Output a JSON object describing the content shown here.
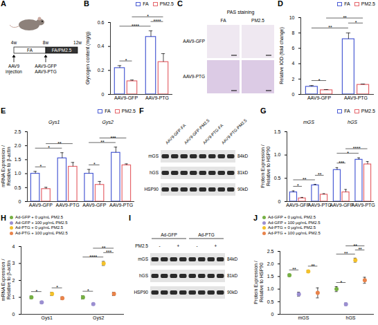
{
  "chart_data": [
    {
      "panel": "B",
      "type": "bar",
      "y_label": "Glycogen content (mg/g)",
      "categories": [
        "AAV9-GFP",
        "AAV9-PTG"
      ],
      "series": [
        {
          "name": "FA",
          "color": "#4a5bd4",
          "values": [
            0.22,
            0.48
          ],
          "errors": [
            0.02,
            0.05
          ]
        },
        {
          "name": "PM2.5",
          "color": "#e5646a",
          "values": [
            0.11,
            0.27
          ],
          "errors": [
            0.01,
            0.07
          ]
        }
      ],
      "ylim": [
        0,
        0.6
      ],
      "yticks": [
        0,
        0.2,
        0.4,
        0.6
      ],
      "legend": "top-right",
      "annotations": [
        {
          "text": "*",
          "from": [
            0,
            0
          ],
          "to": [
            0,
            1
          ]
        },
        {
          "text": "****",
          "from": [
            0,
            0
          ],
          "to": [
            1,
            0
          ]
        },
        {
          "text": "****",
          "from": [
            1,
            0
          ],
          "to": [
            1,
            1
          ]
        },
        {
          "text": "*",
          "from": [
            0,
            1
          ],
          "to": [
            1,
            1
          ]
        }
      ]
    },
    {
      "panel": "D",
      "type": "bar",
      "y_label": "Relative IOD (fold change)",
      "categories": [
        "AAV9-GFP",
        "AAV9-PTG"
      ],
      "series": [
        {
          "name": "FA",
          "color": "#4a5bd4",
          "values": [
            1.0,
            7.2
          ],
          "errors": [
            0.15,
            0.8
          ]
        },
        {
          "name": "PM2.5",
          "color": "#e5646a",
          "values": [
            0.55,
            1.25
          ],
          "errors": [
            0.08,
            0.1
          ]
        }
      ],
      "ylim": [
        0,
        10
      ],
      "yticks": [
        0,
        2,
        4,
        6,
        8,
        10
      ],
      "legend": "top-right",
      "annotations": [
        {
          "text": "*",
          "from": [
            0,
            0
          ],
          "to": [
            0,
            1
          ]
        },
        {
          "text": "**",
          "from": [
            0,
            0
          ],
          "to": [
            1,
            0
          ]
        },
        {
          "text": "*",
          "from": [
            1,
            0
          ],
          "to": [
            1,
            1
          ]
        },
        {
          "text": "**",
          "from": [
            0,
            1
          ],
          "to": [
            1,
            1
          ]
        }
      ]
    },
    {
      "panel": "E",
      "type": "bar",
      "y_label": "mRNA Expression / Relative to β-actin",
      "categories": [
        "AAV9-GFP",
        "AAV9-PTG",
        "AAV9-GFP",
        "AAV9-PTG"
      ],
      "groups": [
        "Gys1",
        "Gys2"
      ],
      "series": [
        {
          "name": "FA",
          "color": "#4a5bd4",
          "values": [
            1.0,
            1.55,
            1.0,
            1.75
          ],
          "errors": [
            0.08,
            0.2,
            0.15,
            0.2
          ]
        },
        {
          "name": "PM2.5",
          "color": "#e5646a",
          "values": [
            0.45,
            1.25,
            0.6,
            1.3
          ],
          "errors": [
            0.06,
            0.15,
            0.12,
            0.05
          ]
        }
      ],
      "ylim": [
        0,
        2.5
      ],
      "yticks": [
        0,
        0.5,
        {
          "value": 1,
          "label": "1.0"
        },
        1.5,
        {
          "value": 2,
          "label": "2.0"
        },
        2.5
      ],
      "legend": "top-right",
      "annotations": [
        {
          "text": "*",
          "from": [
            0,
            0
          ],
          "to": [
            0,
            1
          ]
        },
        {
          "text": "*",
          "from": [
            0,
            0
          ],
          "to": [
            1,
            0
          ]
        },
        {
          "text": "**",
          "from": [
            0,
            1
          ],
          "to": [
            1,
            1
          ]
        },
        {
          "text": "*",
          "from": [
            2,
            0
          ],
          "to": [
            2,
            1
          ]
        },
        {
          "text": "**",
          "from": [
            2,
            0
          ],
          "to": [
            3,
            0
          ]
        },
        {
          "text": "***",
          "from": [
            2,
            1
          ],
          "to": [
            3,
            1
          ]
        }
      ]
    },
    {
      "panel": "G",
      "type": "bar",
      "y_label": "Protein Expression / Relative to HSP90",
      "categories": [
        "AAV9-GFP",
        "AAV9-PTG",
        "AAV9-GFP",
        "AAV9-PTG"
      ],
      "groups": [
        "mGS",
        "hGS"
      ],
      "series": [
        {
          "name": "FA",
          "color": "#4a5bd4",
          "values": [
            0.2,
            0.35,
            0.68,
            0.9
          ],
          "errors": [
            0.03,
            0.02,
            0.05,
            0.04
          ]
        },
        {
          "name": "PM2.5",
          "color": "#e5646a",
          "values": [
            0.07,
            0.15,
            0.2,
            0.8
          ],
          "errors": [
            0.02,
            0.02,
            0.06,
            0.06
          ]
        }
      ],
      "ylim": [
        0,
        1.5
      ],
      "yticks": [
        0,
        0.5,
        {
          "value": 1,
          "label": "1.0"
        },
        1.5
      ],
      "legend": "top-right",
      "annotations": [
        {
          "text": "*",
          "from": [
            0,
            0
          ],
          "to": [
            0,
            1
          ]
        },
        {
          "text": "**",
          "from": [
            0,
            0
          ],
          "to": [
            1,
            0
          ]
        },
        {
          "text": "**",
          "from": [
            1,
            0
          ],
          "to": [
            1,
            1
          ]
        },
        {
          "text": "***",
          "from": [
            2,
            0
          ],
          "to": [
            2,
            1
          ]
        },
        {
          "text": "*",
          "from": [
            2,
            0
          ],
          "to": [
            3,
            0
          ]
        },
        {
          "text": "****",
          "from": [
            2,
            1
          ],
          "to": [
            3,
            1
          ]
        }
      ]
    },
    {
      "panel": "H",
      "type": "scatter",
      "y_label": "mRNA Expression / Relative to β-actin",
      "categories": [
        "Gys1",
        "Gys2"
      ],
      "series": [
        {
          "name": "Ad-GFP + 0 μg/mL PM2.5",
          "color": "#76b043",
          "values": [
            1.0,
            1.0
          ],
          "errors": [
            0.08,
            0.1
          ]
        },
        {
          "name": "Ad-GFP + 100 μg/mL PM2.5",
          "color": "#9b8fd1",
          "values": [
            0.7,
            0.6
          ],
          "errors": [
            0.06,
            0.05
          ]
        },
        {
          "name": "Ad-PTG + 0 μg/mL PM2.5",
          "color": "#f3c12b",
          "values": [
            1.2,
            3.0
          ],
          "errors": [
            0.1,
            0.12
          ]
        },
        {
          "name": "Ad-PTG + 100 μg/mL PM2.5",
          "color": "#e9834a",
          "values": [
            0.95,
            1.2
          ],
          "errors": [
            0.08,
            0.1
          ]
        }
      ],
      "ylim": [
        0,
        4
      ],
      "yticks": [
        0,
        1,
        2,
        3,
        4
      ],
      "legend": "top-left",
      "annotations": [
        {
          "text": "*",
          "from": [
            0,
            0
          ],
          "to": [
            0,
            1
          ]
        },
        {
          "text": "*",
          "from": [
            0,
            2
          ],
          "to": [
            0,
            3
          ]
        },
        {
          "text": "*",
          "from": [
            1,
            0
          ],
          "to": [
            1,
            1
          ]
        },
        {
          "text": "****",
          "from": [
            1,
            0
          ],
          "to": [
            1,
            2
          ]
        },
        {
          "text": "***",
          "from": [
            1,
            2
          ],
          "to": [
            1,
            3
          ]
        },
        {
          "text": "**",
          "from": [
            1,
            1
          ],
          "to": [
            1,
            3
          ]
        }
      ]
    },
    {
      "panel": "J",
      "type": "scatter",
      "y_label": "Protein Expression / Relative to HSP90",
      "categories": [
        "mGS",
        "hGS"
      ],
      "series": [
        {
          "name": "Ad-GFP + 0 μg/mL PM2.5",
          "color": "#76b043",
          "values": [
            1.55,
            1.0
          ],
          "errors": [
            0.05,
            0.1
          ]
        },
        {
          "name": "Ad-GFP + 100 μg/mL PM2.5",
          "color": "#9b8fd1",
          "values": [
            0.8,
            0.4
          ],
          "errors": [
            0.08,
            0.05
          ]
        },
        {
          "name": "Ad-PTG + 0 μg/mL PM2.5",
          "color": "#f3c12b",
          "values": [
            1.7,
            2.15
          ],
          "errors": [
            0.05,
            0.08
          ]
        },
        {
          "name": "Ad-PTG + 100 μg/mL PM2.5",
          "color": "#e9834a",
          "values": [
            0.85,
            1.35
          ],
          "errors": [
            0.2,
            0.12
          ]
        }
      ],
      "ylim": [
        0,
        2.5
      ],
      "yticks": [
        0,
        0.5,
        {
          "value": 1,
          "label": "1.0"
        },
        1.5,
        {
          "value": 2,
          "label": "2.0"
        },
        2.5
      ],
      "legend": "top-left",
      "annotations": [
        {
          "text": "**",
          "from": [
            0,
            0
          ],
          "to": [
            0,
            1
          ]
        },
        {
          "text": "**",
          "from": [
            0,
            2
          ],
          "to": [
            0,
            3
          ]
        },
        {
          "text": "*",
          "from": [
            1,
            0
          ],
          "to": [
            1,
            1
          ]
        },
        {
          "text": "**",
          "from": [
            1,
            0
          ],
          "to": [
            1,
            2
          ]
        },
        {
          "text": "**",
          "from": [
            1,
            2
          ],
          "to": [
            1,
            3
          ]
        },
        {
          "text": "**",
          "from": [
            1,
            1
          ],
          "to": [
            1,
            3
          ]
        }
      ]
    }
  ],
  "schematic": {
    "panel": "A",
    "timepoints": [
      "4w",
      "8w",
      "12w"
    ],
    "periods": [
      "FA",
      "FA/PM2.5"
    ],
    "injection": "AAV9 injection",
    "vectors": [
      "AAV9-GFP",
      "AAV9-PTG"
    ]
  },
  "staining": {
    "panel": "C",
    "title": "PAS staining",
    "columns": [
      "FA",
      "PM2.5"
    ],
    "rows": [
      "AAV9-GFP",
      "AAV9-PTG"
    ]
  },
  "blots": [
    {
      "panel": "F",
      "columns": [
        "AAV9-GFP-FA",
        "AAV9-GFP-PM2.5",
        "AAV9-PTG-FA",
        "AAV9-PTG-PM2.5"
      ],
      "rows": [
        {
          "label": "mGS",
          "size": "84kD"
        },
        {
          "label": "hGS",
          "size": "81kD"
        },
        {
          "label": "HSP90",
          "size": "90kD"
        }
      ]
    },
    {
      "panel": "I",
      "groups": [
        "Ad-GFP",
        "Ad-PTG"
      ],
      "treatment": "PM2.5",
      "signs": [
        "-",
        "+",
        "-",
        "+"
      ],
      "rows": [
        {
          "label": "mGS",
          "size": "84kD"
        },
        {
          "label": "hGS",
          "size": "81kD"
        },
        {
          "label": "HSP90",
          "size": "90kD"
        }
      ]
    }
  ]
}
